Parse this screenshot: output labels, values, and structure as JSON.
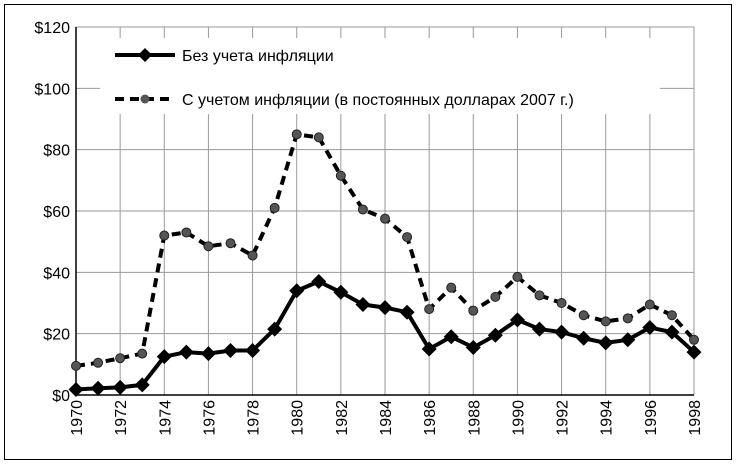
{
  "chart_data": {
    "type": "line",
    "x": [
      1970,
      1971,
      1972,
      1973,
      1974,
      1975,
      1976,
      1977,
      1978,
      1979,
      1980,
      1981,
      1982,
      1983,
      1984,
      1985,
      1986,
      1987,
      1988,
      1989,
      1990,
      1991,
      1992,
      1993,
      1994,
      1995,
      1996,
      1997,
      1998
    ],
    "xticks": [
      "1970",
      "1972",
      "1974",
      "1976",
      "1978",
      "1980",
      "1982",
      "1984",
      "1986",
      "1988",
      "1990",
      "1992",
      "1994",
      "1996",
      "1998"
    ],
    "yticks": [
      "$0",
      "$20",
      "$40",
      "$60",
      "$80",
      "$100",
      "$120"
    ],
    "ylim": [
      0,
      120
    ],
    "grid": true,
    "legend_position": "top-left",
    "series": [
      {
        "name": "Без учета инфляции",
        "style": "solid",
        "marker": "diamond",
        "color": "#000000",
        "values": [
          1.8,
          2.2,
          2.5,
          3.3,
          12.5,
          14,
          13.5,
          14.5,
          14.5,
          21.5,
          34,
          37,
          33.5,
          29.5,
          28.5,
          27,
          15,
          19,
          15.5,
          19.5,
          24.5,
          21.5,
          20.5,
          18.5,
          17,
          18,
          22,
          20.5,
          14
        ]
      },
      {
        "name": "С учетом инфляции (в постоянных долларах 2007 г.)",
        "style": "dashed",
        "marker": "circle",
        "color": "#000000",
        "values": [
          9.5,
          10.5,
          12,
          13.5,
          52,
          53,
          48.5,
          49.5,
          45.5,
          61,
          85,
          84,
          71.5,
          60.5,
          57.5,
          51.5,
          28,
          35,
          27.5,
          32,
          38.5,
          32.5,
          30,
          26,
          24,
          25,
          29.5,
          26,
          18
        ]
      }
    ]
  }
}
